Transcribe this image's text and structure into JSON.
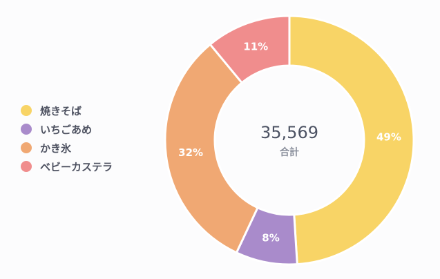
{
  "chart_data": {
    "type": "pie",
    "donut": true,
    "categories": [
      "焼きそば",
      "いちごあめ",
      "かき氷",
      "ベビーカステラ"
    ],
    "values": [
      49,
      8,
      32,
      11
    ],
    "value_labels": [
      "49%",
      "8%",
      "32%",
      "11%"
    ],
    "colors": [
      "#f8d466",
      "#a98bcb",
      "#f0a873",
      "#f08d8d"
    ],
    "center_total": "35,569",
    "center_label": "合計",
    "legend_position": "left"
  }
}
